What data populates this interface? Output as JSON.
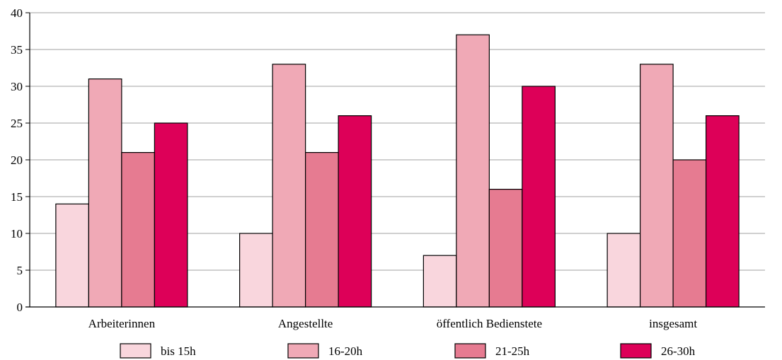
{
  "chart_data": {
    "type": "bar",
    "categories": [
      "Arbeiterinnen",
      "Angestellte",
      "öffentlich Bedienstete",
      "insgesamt"
    ],
    "series": [
      {
        "name": "bis 15h",
        "color": "#f9d6dd",
        "values": [
          14,
          10,
          7,
          10
        ]
      },
      {
        "name": "16-20h",
        "color": "#f0a9b6",
        "values": [
          31,
          33,
          37,
          33
        ]
      },
      {
        "name": "21-25h",
        "color": "#e67b91",
        "values": [
          21,
          21,
          16,
          20
        ]
      },
      {
        "name": "26-30h",
        "color": "#dd0058",
        "values": [
          25,
          26,
          30,
          26
        ]
      }
    ],
    "ylim": [
      0,
      40
    ],
    "yticks": [
      0,
      5,
      10,
      15,
      20,
      25,
      30,
      35,
      40
    ],
    "grid": true,
    "legend_position": "bottom"
  }
}
